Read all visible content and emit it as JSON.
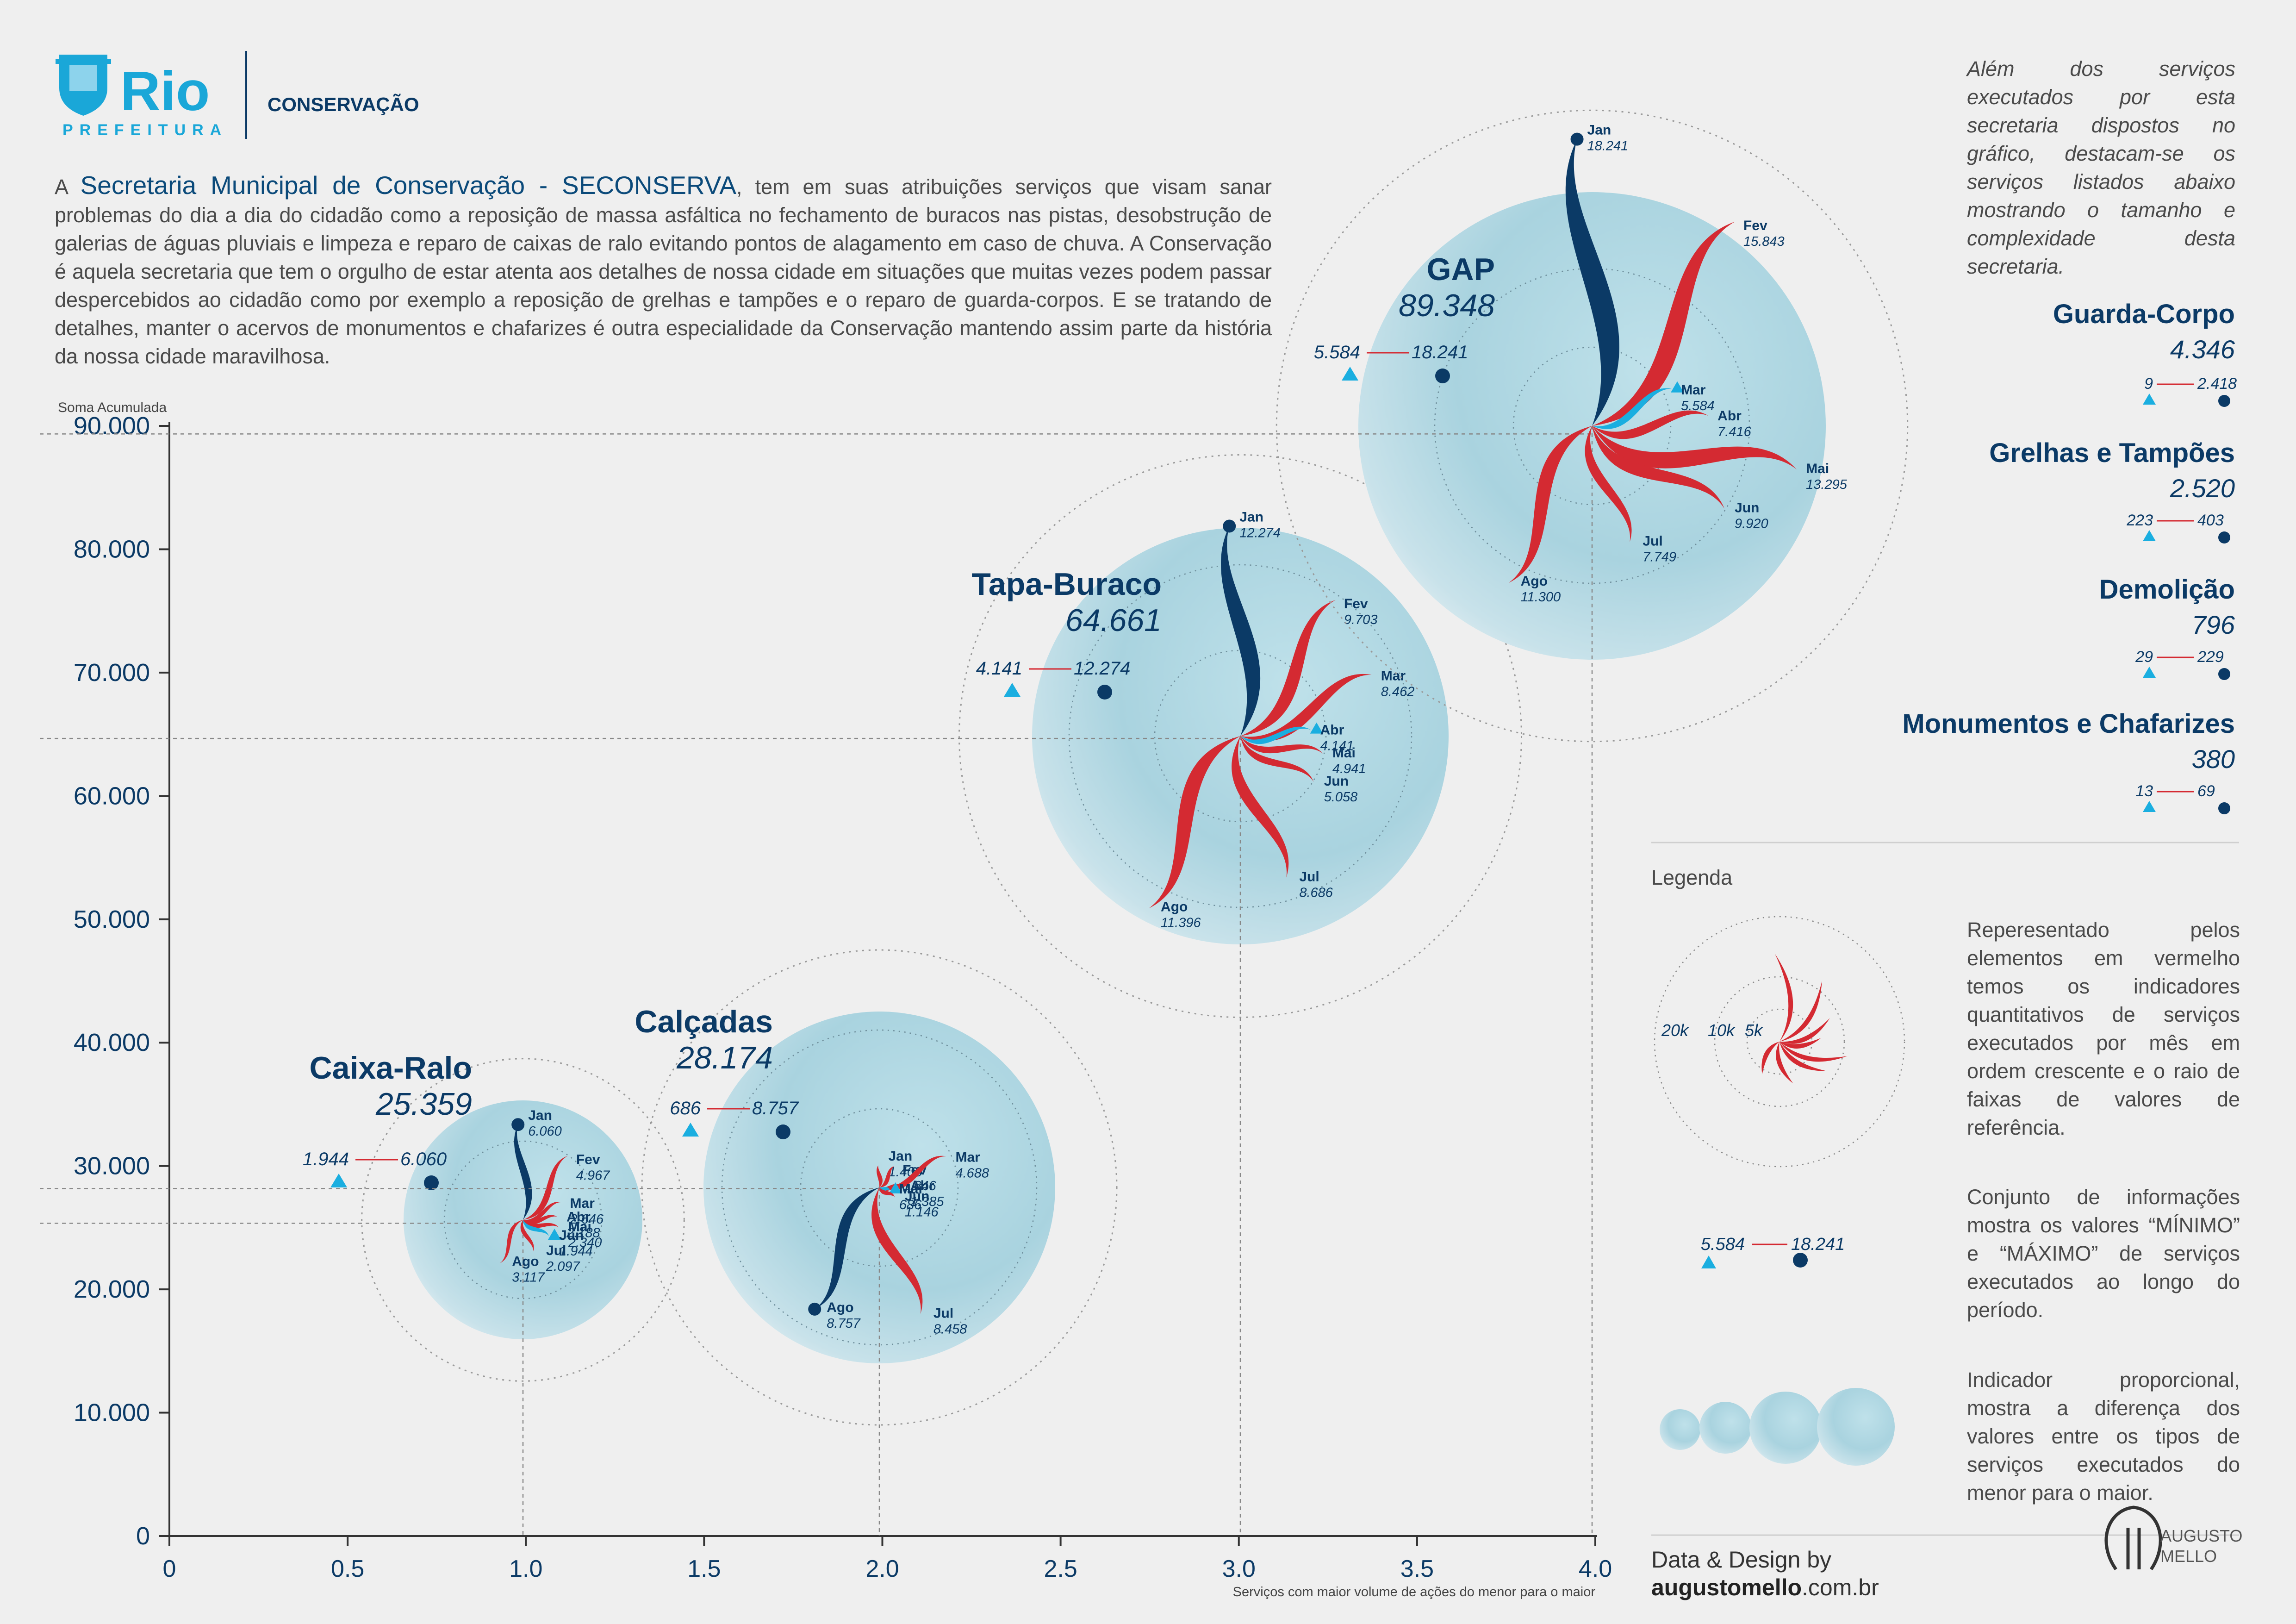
{
  "header": {
    "logo_word": "Rio",
    "logo_sub": "PREFEITURA",
    "department": "CONSERVAÇÃO"
  },
  "intro": {
    "lead": "A ",
    "highlight": "Secretaria Municipal de Conservação - SECONSERVA",
    "text": ", tem em suas atribuições serviços que visam sanar problemas do dia a dia do cidadão como a reposição de massa asfáltica no fechamento de buracos nas pistas, desobstrução de galerias de águas pluviais e limpeza e reparo de caixas de ralo evitando pontos de alagamento em caso de chuva. A Conservação é aquela secretaria que tem o orgulho de estar atenta aos detalhes de nossa cidade em situações que muitas vezes podem passar despercebidos ao cidadão como por exemplo a reposição de grelhas e tampões e o reparo de guarda-corpos. E se tratando de detalhes, manter o acervos de monumentos e chafarizes é outra especialidade da Conservação mantendo assim parte da história da nossa cidade maravilhosa."
  },
  "side_intro": "Além dos serviços executados por esta secretaria dispostos no gráfico, destacam-se os serviços listados abaixo mostrando o tamanho e complexidade desta secretaria.",
  "other_services": [
    {
      "name": "Guarda-Corpo",
      "total": "4.346",
      "min": "9",
      "max": "2.418"
    },
    {
      "name": "Grelhas e Tampões",
      "total": "2.520",
      "min": "223",
      "max": "403"
    },
    {
      "name": "Demolição",
      "total": "796",
      "min": "29",
      "max": "229"
    },
    {
      "name": "Monumentos e Chafarizes",
      "total": "380",
      "min": "13",
      "max": "69"
    }
  ],
  "legend": {
    "title": "Legenda",
    "ring_labels": [
      "20k",
      "10k",
      "5k"
    ],
    "text_radial": "Reperesentado pelos elementos em vermelho temos os indicadores quantitativos de serviços executados por mês em ordem crescente e o raio de faixas de valores de referência.",
    "example_min": "5.584",
    "example_max": "18.241",
    "text_minmax": "Conjunto de informações mostra os valores “MÍNIMO” e “MÁXIMO” de serviços executados ao longo do período.",
    "text_size": "Indicador proporcional, mostra a diferença dos valores entre os tipos de serviços executados do menor para o maior."
  },
  "credits": {
    "line1": "Data & Design by",
    "site_bold": "augustomello",
    "site_rest": ".com.br",
    "brand1": "AUGUSTO",
    "brand2": "MELLO"
  },
  "colors": {
    "navy": "#0b3a66",
    "red": "#d42a32",
    "cyan": "#1aaee0",
    "bubble": "#b4d8e4"
  },
  "chart_data": {
    "type": "scatter",
    "subtype": "bubble-with-radial-monthly-petals",
    "ylabel": "Soma Acumulada",
    "xlabel": "Serviços com maior volume de ações do menor para o maior",
    "xlim": [
      0,
      4.0
    ],
    "ylim": [
      0,
      90000
    ],
    "x_ticks": [
      "0",
      "0.5",
      "1.0",
      "1.5",
      "2.0",
      "2.5",
      "3.0",
      "3.5",
      "4.0"
    ],
    "y_ticks": [
      "0",
      "10.000",
      "20.000",
      "30.000",
      "40.000",
      "50.000",
      "60.000",
      "70.000",
      "80.000",
      "90.000"
    ],
    "months": [
      "Jan",
      "Fev",
      "Mar",
      "Abr",
      "Mai",
      "Jun",
      "Jul",
      "Ago"
    ],
    "series": [
      {
        "name": "Caixa-Ralo",
        "total_label": "25.359",
        "x": 1.0,
        "y": 25359,
        "min_label": "1.944",
        "max_label": "6.060",
        "monthly": [
          6060,
          4967,
          2646,
          2188,
          2340,
          1944,
          2097,
          3117
        ],
        "monthly_labels": [
          "6.060",
          "4.967",
          "2.646",
          "2.188",
          "2.340",
          "1.944",
          "2.097",
          "3.117"
        ]
      },
      {
        "name": "Calçadas",
        "total_label": "28.174",
        "x": 2.0,
        "y": 28174,
        "min_label": "686",
        "max_label": "8.757",
        "monthly": [
          1408,
          1646,
          4688,
          1385,
          686,
          1146,
          8458,
          8757
        ],
        "monthly_labels": [
          "1.408",
          "1.646",
          "4.688",
          "1.385",
          "686",
          "1.146",
          "8.458",
          "8.757"
        ]
      },
      {
        "name": "Tapa-Buraco",
        "total_label": "64.661",
        "x": 3.0,
        "y": 64661,
        "min_label": "4.141",
        "max_label": "12.274",
        "monthly": [
          12274,
          9703,
          8462,
          4141,
          4941,
          5058,
          8686,
          11396
        ],
        "monthly_labels": [
          "12.274",
          "9.703",
          "8.462",
          "4.141",
          "4.941",
          "5.058",
          "8.686",
          "11.396"
        ]
      },
      {
        "name": "GAP",
        "total_label": "89.348",
        "x": 4.0,
        "y": 89348,
        "min_label": "5.584",
        "max_label": "18.241",
        "monthly": [
          18241,
          15843,
          5584,
          7416,
          13295,
          9920,
          7749,
          11300
        ],
        "monthly_labels": [
          "18.241",
          "15.843",
          "5.584",
          "7.416",
          "13.295",
          "9.920",
          "7.749",
          "11.300"
        ]
      }
    ]
  }
}
